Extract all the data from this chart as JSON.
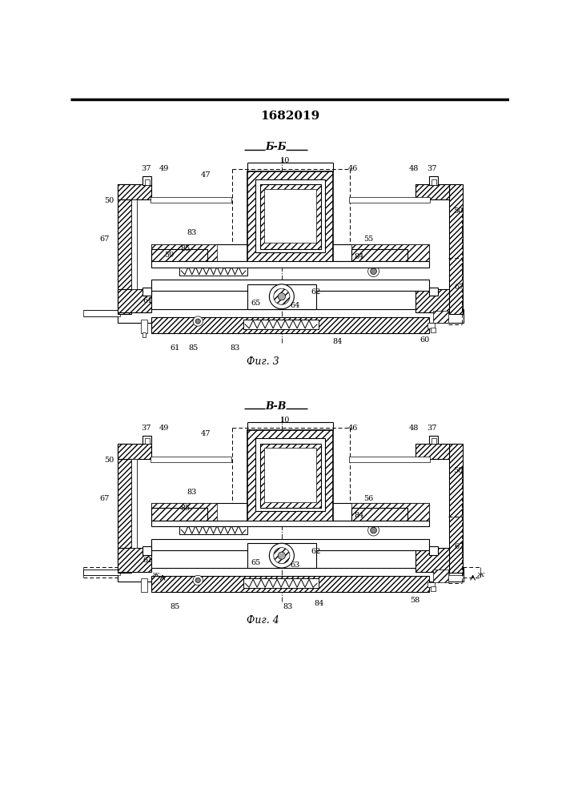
{
  "patent_number": "1682019",
  "fig3_label": "Б-Б",
  "fig3_caption": "Фиг. 3",
  "fig4_label": "В-В",
  "fig4_caption": "Фиг. 4",
  "bg_color": "#ffffff"
}
